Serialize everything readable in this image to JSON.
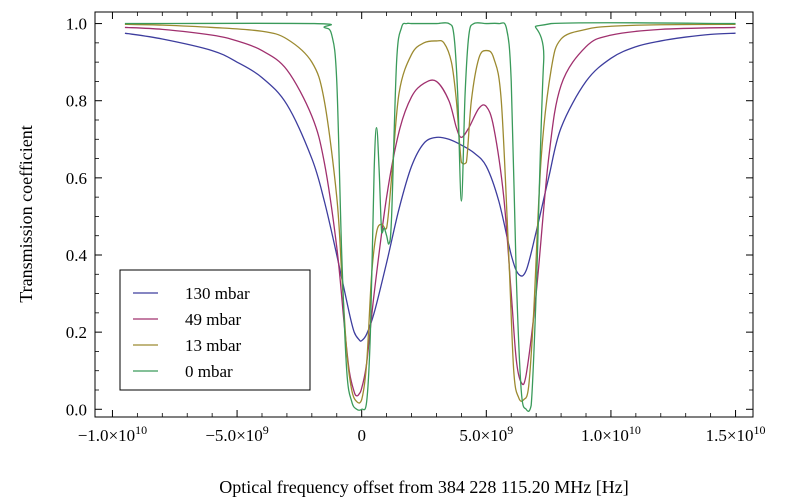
{
  "chart_data": {
    "type": "line",
    "title": "",
    "xlabel": "Optical frequency offset from 384 228 115.20 MHz [Hz]",
    "ylabel": "Transmission coefficient",
    "xlim": [
      -10700000000.0,
      15700000000.0
    ],
    "ylim": [
      -0.02,
      1.03
    ],
    "x_ticks": [
      {
        "value": -10000000000.0,
        "mant": "−1.0",
        "exp": "10"
      },
      {
        "value": -5000000000.0,
        "mant": "−5.0",
        "exp": "9"
      },
      {
        "value": 0,
        "mant": "0",
        "exp": ""
      },
      {
        "value": 5000000000.0,
        "mant": "5.0",
        "exp": "9"
      },
      {
        "value": 10000000000.0,
        "mant": "1.0",
        "exp": "10"
      },
      {
        "value": 15000000000.0,
        "mant": "1.5",
        "exp": "10"
      }
    ],
    "y_ticks": [
      {
        "value": 0.0,
        "label": "0.0"
      },
      {
        "value": 0.2,
        "label": "0.2"
      },
      {
        "value": 0.4,
        "label": "0.4"
      },
      {
        "value": 0.6,
        "label": "0.6"
      },
      {
        "value": 0.8,
        "label": "0.8"
      },
      {
        "value": 1.0,
        "label": "1.0"
      }
    ],
    "grid": false,
    "legend_position": "bottom-left",
    "series": [
      {
        "name": "130 mbar",
        "color": "#3d3d9e",
        "x": [
          -9500000000.0,
          -8000000000.0,
          -6000000000.0,
          -5000000000.0,
          -4000000000.0,
          -3000000000.0,
          -2000000000.0,
          -1500000000.0,
          -1000000000.0,
          -500000000.0,
          -300000000.0,
          -100000000.0,
          0,
          200000000.0,
          500000000.0,
          1000000000.0,
          1500000000.0,
          2000000000.0,
          2500000000.0,
          3000000000.0,
          3500000000.0,
          4000000000.0,
          4500000000.0,
          5000000000.0,
          5500000000.0,
          6000000000.0,
          6300000000.0,
          6600000000.0,
          7000000000.0,
          7500000000.0,
          8000000000.0,
          9000000000.0,
          10000000000.0,
          11000000000.0,
          12000000000.0,
          13000000000.0,
          14000000000.0,
          15000000000.0
        ],
        "y": [
          0.975,
          0.96,
          0.93,
          0.9,
          0.86,
          0.79,
          0.65,
          0.54,
          0.4,
          0.25,
          0.2,
          0.18,
          0.178,
          0.195,
          0.25,
          0.38,
          0.52,
          0.63,
          0.69,
          0.705,
          0.7,
          0.685,
          0.665,
          0.63,
          0.54,
          0.4,
          0.35,
          0.36,
          0.46,
          0.6,
          0.73,
          0.85,
          0.91,
          0.94,
          0.955,
          0.965,
          0.972,
          0.975
        ]
      },
      {
        "name": "49 mbar",
        "color": "#a0306e",
        "x": [
          -9500000000.0,
          -8000000000.0,
          -6000000000.0,
          -5000000000.0,
          -4000000000.0,
          -3000000000.0,
          -2000000000.0,
          -1500000000.0,
          -1000000000.0,
          -700000000.0,
          -500000000.0,
          -300000000.0,
          -200000000.0,
          -100000000.0,
          0,
          200000000.0,
          500000000.0,
          1000000000.0,
          1500000000.0,
          2000000000.0,
          2500000000.0,
          3000000000.0,
          3500000000.0,
          3800000000.0,
          4000000000.0,
          4300000000.0,
          4700000000.0,
          5000000000.0,
          5300000000.0,
          5700000000.0,
          6000000000.0,
          6200000000.0,
          6400000000.0,
          6600000000.0,
          7000000000.0,
          7500000000.0,
          8000000000.0,
          9000000000.0,
          10000000000.0,
          12000000000.0,
          15000000000.0
        ],
        "y": [
          0.99,
          0.985,
          0.97,
          0.955,
          0.93,
          0.88,
          0.76,
          0.64,
          0.42,
          0.22,
          0.1,
          0.045,
          0.035,
          0.04,
          0.055,
          0.12,
          0.3,
          0.55,
          0.72,
          0.81,
          0.845,
          0.85,
          0.8,
          0.73,
          0.705,
          0.73,
          0.78,
          0.785,
          0.73,
          0.55,
          0.3,
          0.13,
          0.07,
          0.09,
          0.3,
          0.65,
          0.84,
          0.94,
          0.97,
          0.985,
          0.99
        ]
      },
      {
        "name": "13 mbar",
        "color": "#9c8a30",
        "x": [
          -9500000000.0,
          -8000000000.0,
          -6000000000.0,
          -4000000000.0,
          -3000000000.0,
          -2000000000.0,
          -1500000000.0,
          -1000000000.0,
          -800000000.0,
          -600000000.0,
          -400000000.0,
          -200000000.0,
          0,
          200000000.0,
          400000000.0,
          600000000.0,
          800000000.0,
          1000000000.0,
          1200000000.0,
          1500000000.0,
          2000000000.0,
          2500000000.0,
          3000000000.0,
          3300000000.0,
          3600000000.0,
          3800000000.0,
          4000000000.0,
          4200000000.0,
          4400000000.0,
          4700000000.0,
          5000000000.0,
          5300000000.0,
          5600000000.0,
          5900000000.0,
          6100000000.0,
          6300000000.0,
          6500000000.0,
          6700000000.0,
          6900000000.0,
          7200000000.0,
          7600000000.0,
          8000000000.0,
          9000000000.0,
          10000000000.0,
          12000000000.0,
          15000000000.0
        ],
        "y": [
          0.998,
          0.996,
          0.99,
          0.98,
          0.96,
          0.9,
          0.8,
          0.55,
          0.35,
          0.15,
          0.05,
          0.02,
          0.025,
          0.12,
          0.35,
          0.46,
          0.48,
          0.47,
          0.6,
          0.82,
          0.92,
          0.95,
          0.955,
          0.95,
          0.9,
          0.8,
          0.64,
          0.64,
          0.8,
          0.91,
          0.93,
          0.91,
          0.8,
          0.4,
          0.1,
          0.03,
          0.025,
          0.06,
          0.25,
          0.65,
          0.88,
          0.96,
          0.985,
          0.993,
          0.997,
          0.998
        ]
      },
      {
        "name": "0 mbar",
        "color": "#3a9a5a",
        "x": [
          -9500000000.0,
          -1900000000.0,
          -1500000000.0,
          -1200000000.0,
          -1000000000.0,
          -800000000.0,
          -600000000.0,
          -400000000.0,
          -200000000.0,
          0,
          200000000.0,
          350000000.0,
          500000000.0,
          600000000.0,
          700000000.0,
          800000000.0,
          900000000.0,
          1000000000.0,
          1100000000.0,
          1200000000.0,
          1400000000.0,
          1600000000.0,
          1800000000.0,
          2000000000.0,
          2500000000.0,
          3000000000.0,
          3500000000.0,
          3700000000.0,
          3850000000.0,
          4000000000.0,
          4150000000.0,
          4300000000.0,
          4500000000.0,
          5000000000.0,
          5500000000.0,
          5800000000.0,
          6000000000.0,
          6200000000.0,
          6400000000.0,
          6600000000.0,
          6800000000.0,
          7000000000.0,
          7300000000.0,
          7600000000.0,
          15000000000.0
        ],
        "y": [
          1.0,
          1.0,
          0.99,
          0.97,
          0.85,
          0.4,
          0.1,
          0.02,
          0.0,
          0.0,
          0.02,
          0.2,
          0.62,
          0.73,
          0.62,
          0.46,
          0.47,
          0.45,
          0.43,
          0.5,
          0.9,
          0.99,
          1.0,
          1.0,
          1.0,
          1.0,
          1.0,
          0.97,
          0.82,
          0.54,
          0.82,
          0.97,
          1.0,
          1.0,
          1.0,
          0.99,
          0.85,
          0.35,
          0.05,
          0.0,
          0.01,
          0.3,
          0.9,
          1.0,
          1.0
        ]
      }
    ]
  }
}
